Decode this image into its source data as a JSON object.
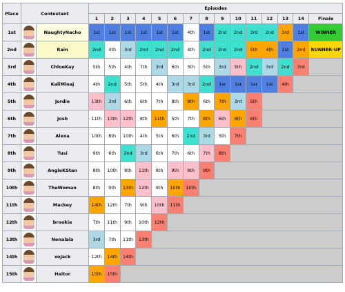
{
  "table": {
    "headers": {
      "place": "Place",
      "contestant": "Contestant",
      "episodes": "Episodes",
      "finale": "Finale"
    },
    "episodes": [
      1,
      2,
      3,
      4,
      5,
      6,
      7,
      8,
      9,
      10,
      11,
      12,
      13,
      14
    ],
    "rows": [
      {
        "place": "1st",
        "name": "NaughtyNacho",
        "name_color": "#fdfde0",
        "results": [
          {
            "text": "1st",
            "color": "#4f7fe0"
          },
          {
            "text": "1st",
            "color": "#4f7fe0"
          },
          {
            "text": "1st",
            "color": "#4f7fe0"
          },
          {
            "text": "1st",
            "color": "#4f7fe0"
          },
          {
            "text": "1st",
            "color": "#4f7fe0"
          },
          {
            "text": "1st",
            "color": "#4f7fe0"
          },
          {
            "text": "4th",
            "color": "#ffffff"
          },
          {
            "text": "1st",
            "color": "#4f7fe0"
          },
          {
            "text": "2nd",
            "color": "#40e0d0"
          },
          {
            "text": "2nd",
            "color": "#40e0d0"
          },
          {
            "text": "3rd",
            "color": "#40e0d0"
          },
          {
            "text": "2nd",
            "color": "#40e0d0"
          },
          {
            "text": "3rd",
            "color": "#ffa500"
          },
          {
            "text": "1st",
            "color": "#4f7fe0"
          }
        ],
        "finale": {
          "text": "WINNER",
          "color": "#32cd32"
        }
      },
      {
        "place": "2nd",
        "name": "Rain",
        "name_color": "#fafac8",
        "results": [
          {
            "text": "2nd",
            "color": "#40e0d0"
          },
          {
            "text": "4th",
            "color": "#ffffff"
          },
          {
            "text": "3rd",
            "color": "#add8e6"
          },
          {
            "text": "2nd",
            "color": "#40e0d0"
          },
          {
            "text": "2nd",
            "color": "#40e0d0"
          },
          {
            "text": "2nd",
            "color": "#40e0d0"
          },
          {
            "text": "4th",
            "color": "#ffffff"
          },
          {
            "text": "2nd",
            "color": "#40e0d0"
          },
          {
            "text": "2nd",
            "color": "#40e0d0"
          },
          {
            "text": "2nd",
            "color": "#40e0d0"
          },
          {
            "text": "5th",
            "color": "#ffa500"
          },
          {
            "text": "4th",
            "color": "#ffa500"
          },
          {
            "text": "1st",
            "color": "#4f7fe0"
          },
          {
            "text": "2nd",
            "color": "#ffa500"
          }
        ],
        "finale": {
          "text": "RUNNER-UP",
          "color": "#ffd700"
        }
      },
      {
        "place": "3rd",
        "name": "ChloeKay",
        "results": [
          {
            "text": "5th",
            "color": "#ffffff"
          },
          {
            "text": "5th",
            "color": "#ffffff"
          },
          {
            "text": "4th",
            "color": "#ffffff"
          },
          {
            "text": "7th",
            "color": "#ffffff"
          },
          {
            "text": "3rd",
            "color": "#add8e6"
          },
          {
            "text": "6th",
            "color": "#ffffff"
          },
          {
            "text": "5th",
            "color": "#ffffff"
          },
          {
            "text": "5th",
            "color": "#ffffff"
          },
          {
            "text": "3rd",
            "color": "#add8e6"
          },
          {
            "text": "5th",
            "color": "#ffc0cb"
          },
          {
            "text": "2nd",
            "color": "#40e0d0"
          },
          {
            "text": "3rd",
            "color": "#add8e6"
          },
          {
            "text": "2nd",
            "color": "#40e0d0"
          },
          {
            "text": "3rd",
            "color": "#fa8072"
          }
        ]
      },
      {
        "place": "4th",
        "name": "KaliMinaj",
        "results": [
          {
            "text": "4th",
            "color": "#ffffff"
          },
          {
            "text": "2nd",
            "color": "#40e0d0"
          },
          {
            "text": "5th",
            "color": "#ffffff"
          },
          {
            "text": "5th",
            "color": "#ffffff"
          },
          {
            "text": "4th",
            "color": "#ffffff"
          },
          {
            "text": "3rd",
            "color": "#add8e6"
          },
          {
            "text": "3rd",
            "color": "#add8e6"
          },
          {
            "text": "2nd",
            "color": "#40e0d0"
          },
          {
            "text": "1st",
            "color": "#4f7fe0"
          },
          {
            "text": "1st",
            "color": "#4f7fe0"
          },
          {
            "text": "1st",
            "color": "#4f7fe0"
          },
          {
            "text": "1st",
            "color": "#4f7fe0"
          },
          {
            "text": "4th",
            "color": "#fa8072"
          }
        ]
      },
      {
        "place": "5th",
        "name": "Jordie",
        "results": [
          {
            "text": "13th",
            "color": "#ffc0cb"
          },
          {
            "text": "3rd",
            "color": "#add8e6"
          },
          {
            "text": "6th",
            "color": "#ffffff"
          },
          {
            "text": "6th",
            "color": "#ffffff"
          },
          {
            "text": "7th",
            "color": "#ffffff"
          },
          {
            "text": "8th",
            "color": "#ffffff"
          },
          {
            "text": "9th",
            "color": "#ffa500"
          },
          {
            "text": "6th",
            "color": "#ffffff"
          },
          {
            "text": "7th",
            "color": "#ffa500"
          },
          {
            "text": "3rd",
            "color": "#add8e6"
          },
          {
            "text": "5th",
            "color": "#fa8072"
          }
        ]
      },
      {
        "place": "6th",
        "name": "Josh",
        "results": [
          {
            "text": "11th",
            "color": "#ffffff"
          },
          {
            "text": "13th",
            "color": "#ffc0cb"
          },
          {
            "text": "12th",
            "color": "#ffc0cb"
          },
          {
            "text": "8th",
            "color": "#ffffff"
          },
          {
            "text": "11th",
            "color": "#ffa500"
          },
          {
            "text": "5th",
            "color": "#ffffff"
          },
          {
            "text": "7th",
            "color": "#ffffff"
          },
          {
            "text": "8th",
            "color": "#ffa500"
          },
          {
            "text": "6th",
            "color": "#ffc0cb"
          },
          {
            "text": "6th",
            "color": "#ffa500"
          },
          {
            "text": "6th",
            "color": "#fa8072"
          }
        ]
      },
      {
        "place": "7th",
        "name": "Alexa",
        "results": [
          {
            "text": "10th",
            "color": "#ffffff"
          },
          {
            "text": "8th",
            "color": "#ffffff"
          },
          {
            "text": "10th",
            "color": "#ffffff"
          },
          {
            "text": "4th",
            "color": "#ffffff"
          },
          {
            "text": "5th",
            "color": "#ffffff"
          },
          {
            "text": "6th",
            "color": "#ffffff"
          },
          {
            "text": "2nd",
            "color": "#40e0d0"
          },
          {
            "text": "3rd",
            "color": "#add8e6"
          },
          {
            "text": "5th",
            "color": "#ffffff"
          },
          {
            "text": "7th",
            "color": "#fa8072"
          }
        ]
      },
      {
        "place": "8th",
        "name": "Tusi",
        "results": [
          {
            "text": "9th",
            "color": "#ffffff"
          },
          {
            "text": "6th",
            "color": "#ffffff"
          },
          {
            "text": "2nd",
            "color": "#40e0d0"
          },
          {
            "text": "3rd",
            "color": "#add8e6"
          },
          {
            "text": "6th",
            "color": "#ffffff"
          },
          {
            "text": "7th",
            "color": "#ffffff"
          },
          {
            "text": "6th",
            "color": "#ffffff"
          },
          {
            "text": "7th",
            "color": "#ffc0cb"
          },
          {
            "text": "8th",
            "color": "#fa8072"
          }
        ]
      },
      {
        "place": "9th",
        "name": "AngieKStan",
        "results": [
          {
            "text": "8th",
            "color": "#ffffff"
          },
          {
            "text": "10th",
            "color": "#ffffff"
          },
          {
            "text": "8th",
            "color": "#ffffff"
          },
          {
            "text": "11th",
            "color": "#ffc0cb"
          },
          {
            "text": "8th",
            "color": "#ffffff"
          },
          {
            "text": "9th",
            "color": "#ffc0cb"
          },
          {
            "text": "8th",
            "color": "#ffc0cb"
          },
          {
            "text": "9th",
            "color": "#fa8072"
          }
        ]
      },
      {
        "place": "10th",
        "name": "TheWoman",
        "results": [
          {
            "text": "8th",
            "color": "#ffffff"
          },
          {
            "text": "9th",
            "color": "#ffffff"
          },
          {
            "text": "13th",
            "color": "#ffa500"
          },
          {
            "text": "12th",
            "color": "#ffc0cb"
          },
          {
            "text": "9th",
            "color": "#ffffff"
          },
          {
            "text": "10th",
            "color": "#ffa500"
          },
          {
            "text": "10th",
            "color": "#fa8072"
          }
        ]
      },
      {
        "place": "11th",
        "name": "Mackey",
        "results": [
          {
            "text": "14th",
            "color": "#ffa500"
          },
          {
            "text": "12th",
            "color": "#ffffff"
          },
          {
            "text": "7th",
            "color": "#ffffff"
          },
          {
            "text": "9th",
            "color": "#ffffff"
          },
          {
            "text": "10th",
            "color": "#ffc0cb"
          },
          {
            "text": "11th",
            "color": "#fa8072"
          }
        ]
      },
      {
        "place": "12th",
        "name": "brookie",
        "results": [
          {
            "text": "7th",
            "color": "#ffffff"
          },
          {
            "text": "11th",
            "color": "#ffffff"
          },
          {
            "text": "9th",
            "color": "#ffffff"
          },
          {
            "text": "10th",
            "color": "#ffffff"
          },
          {
            "text": "12th",
            "color": "#fa8072"
          }
        ]
      },
      {
        "place": "13th",
        "name": "Nenalala",
        "results": [
          {
            "text": "3rd",
            "color": "#add8e6"
          },
          {
            "text": "7th",
            "color": "#ffffff"
          },
          {
            "text": "11th",
            "color": "#ffffff"
          },
          {
            "text": "13th",
            "color": "#fa8072"
          }
        ]
      },
      {
        "place": "14th",
        "name": "xoJack",
        "results": [
          {
            "text": "12th",
            "color": "#ffffff"
          },
          {
            "text": "14th",
            "color": "#ffa500"
          },
          {
            "text": "14th",
            "color": "#fa8072"
          }
        ]
      },
      {
        "place": "15th",
        "name": "Heitor",
        "results": [
          {
            "text": "15th",
            "color": "#ffa500"
          },
          {
            "text": "15th",
            "color": "#fa8072"
          }
        ]
      }
    ]
  }
}
